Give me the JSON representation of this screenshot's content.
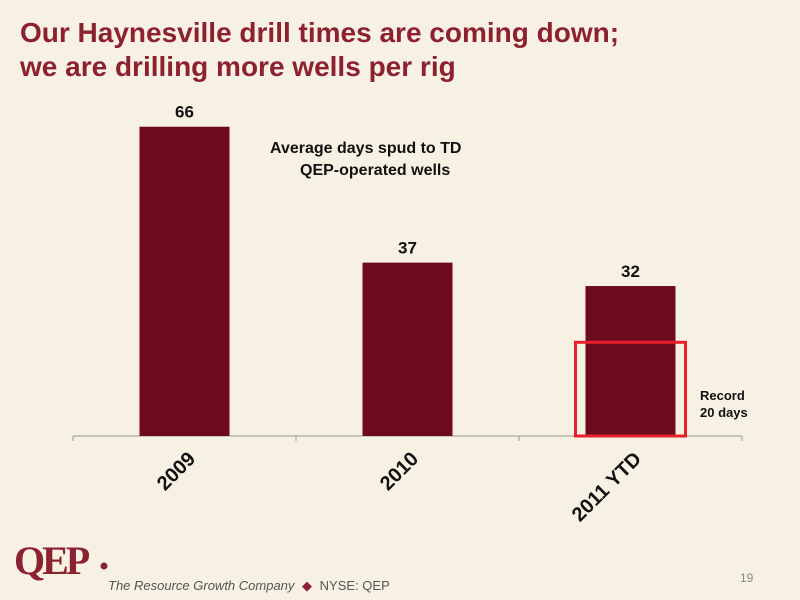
{
  "slide": {
    "title_line1": "Our Haynesville drill times are coming down;",
    "title_line2": "we are drilling more wells per rig",
    "page_number": "19"
  },
  "footer": {
    "logo_text": "QEP",
    "company": "The Resource Growth Company",
    "separator": "◆",
    "ticker": "NYSE: QEP"
  },
  "colors": {
    "bar": "#6e0a1d",
    "title": "#8c2132",
    "highlight_box": "#e8202a",
    "background": "#f6f1e2"
  },
  "chart_data": {
    "type": "bar",
    "title": "Average days spud to TD",
    "subtitle": "QEP-operated wells",
    "categories": [
      "2009",
      "2010",
      "2011 YTD"
    ],
    "values": [
      66,
      37,
      32
    ],
    "data_labels": [
      "66",
      "37",
      "32"
    ],
    "ylim": [
      0,
      70
    ],
    "xlabel": "",
    "ylabel": "",
    "grid": false,
    "legend": "none",
    "annotation": {
      "text_line1": "Record",
      "text_line2": "20 days",
      "category": "2011 YTD",
      "value": 20
    }
  }
}
